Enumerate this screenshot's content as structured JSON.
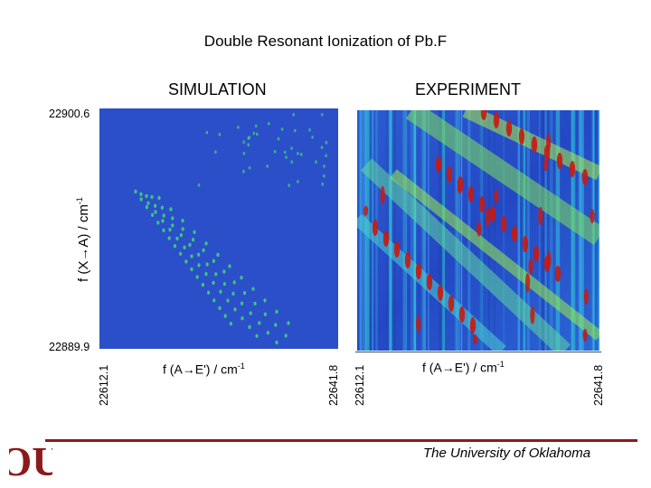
{
  "slide": {
    "title": "Double Resonant Ionization of Pb.F",
    "institution": "The University of Oklahoma",
    "logo_text": "OU"
  },
  "chart_data": [
    {
      "type": "heatmap",
      "title": "SIMULATION",
      "xlabel": "f (A→E') / cm-1",
      "xlabel_main": "f (A→E') / cm",
      "xlabel_sup": "-1",
      "ylabel": "f (X→A) / cm-1",
      "ylabel_main": "f (X→A) / cm",
      "ylabel_sup": "-1",
      "x_range": [
        22612.1,
        22641.8
      ],
      "y_range": [
        22889.9,
        22900.6
      ],
      "x_tick_labels": [
        "22612.1",
        "22641.8"
      ],
      "y_tick_labels": [
        "22900.6",
        "22889.9"
      ],
      "colors": {
        "background": "#2b4fc8",
        "peak": "#3fd07a"
      }
    },
    {
      "type": "heatmap",
      "title": "EXPERIMENT",
      "xlabel": "f (A→E') / cm-1",
      "xlabel_main": "f (A→E') / cm",
      "xlabel_sup": "-1",
      "x_range": [
        22612.1,
        22641.8
      ],
      "x_tick_labels": [
        "22612.1",
        "22641.8"
      ],
      "colors": {
        "background": "#2340c0",
        "mid": "#35c6d8",
        "high": "#8fe040",
        "peak": "#c81a10"
      }
    }
  ]
}
